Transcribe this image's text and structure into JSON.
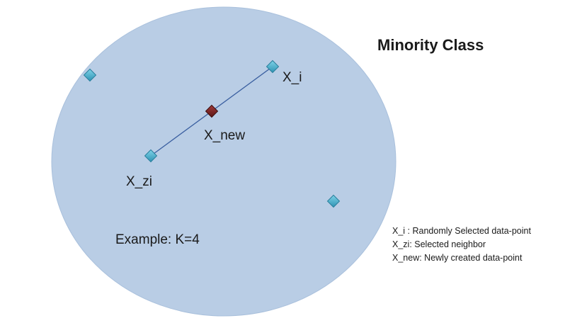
{
  "title": "Minority Class",
  "labels": {
    "x_i": "X_i",
    "x_new": "X_new",
    "x_zi": "X_zi",
    "example": "Example: K=4"
  },
  "legend": [
    "X_i : Randomly Selected data-point",
    "X_zi: Selected neighbor",
    "X_new: Newly created data-point"
  ],
  "colors": {
    "ellipse_fill": "#b9cde5",
    "point_fill": "#4bacc6",
    "new_point_fill": "#8b2a2a",
    "line": "#3a5fa0"
  }
}
